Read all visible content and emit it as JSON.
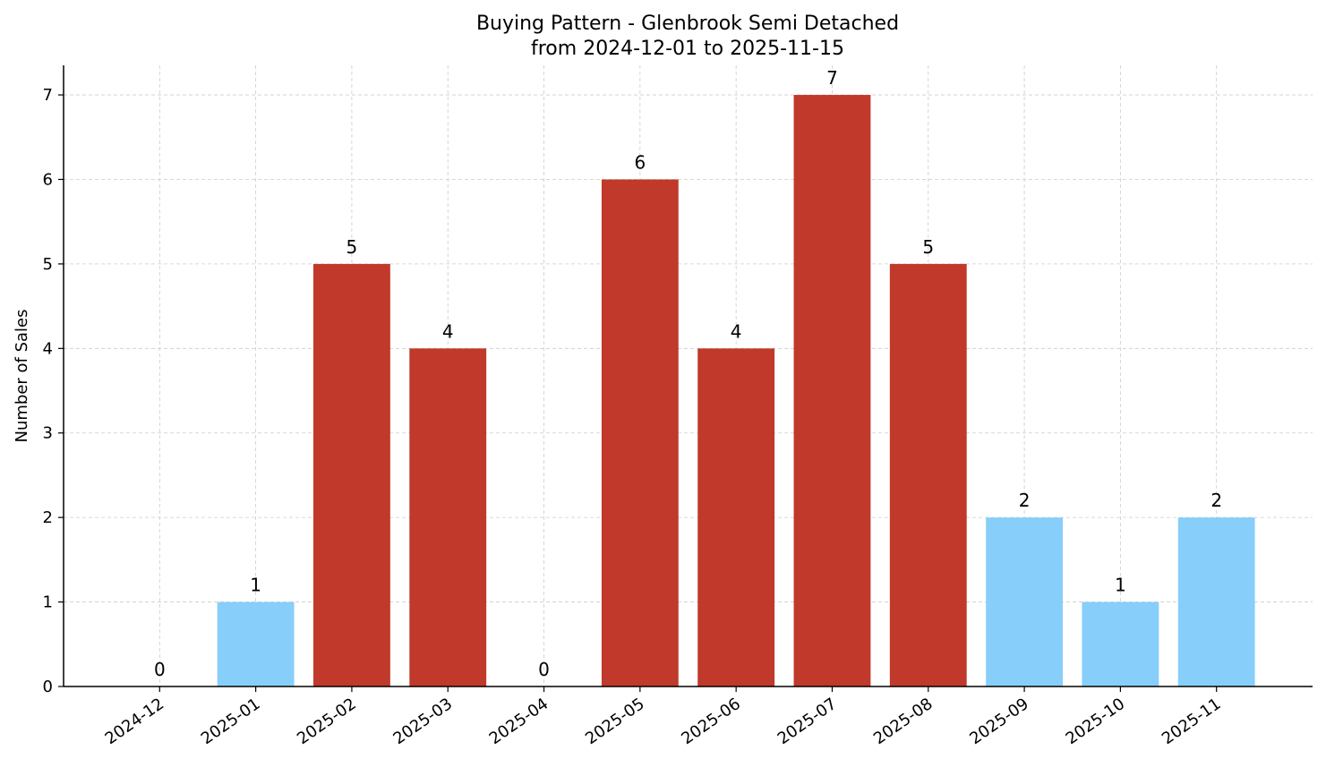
{
  "chart_data": {
    "type": "bar",
    "title": "Buying Pattern - Glenbrook Semi Detached",
    "subtitle": "from 2024-12-01 to 2025-11-15",
    "xlabel": "",
    "ylabel": "Number of Sales",
    "categories": [
      "2024-12",
      "2025-01",
      "2025-02",
      "2025-03",
      "2025-04",
      "2025-05",
      "2025-06",
      "2025-07",
      "2025-08",
      "2025-09",
      "2025-10",
      "2025-11"
    ],
    "values": [
      0,
      1,
      5,
      4,
      0,
      6,
      4,
      7,
      5,
      2,
      1,
      2
    ],
    "bar_colors": [
      "#87cefa",
      "#87cefa",
      "#c0392b",
      "#c0392b",
      "#87cefa",
      "#c0392b",
      "#c0392b",
      "#c0392b",
      "#c0392b",
      "#87cefa",
      "#87cefa",
      "#87cefa"
    ],
    "data_labels": [
      "0",
      "1",
      "5",
      "4",
      "0",
      "6",
      "4",
      "7",
      "5",
      "2",
      "1",
      "2"
    ],
    "yticks": [
      "0",
      "1",
      "2",
      "3",
      "4",
      "5",
      "6",
      "7"
    ],
    "ylim": [
      0,
      7.35
    ],
    "grid": true,
    "legend": "none",
    "colors": {
      "high": "#c0392b",
      "low": "#87cefa"
    }
  }
}
